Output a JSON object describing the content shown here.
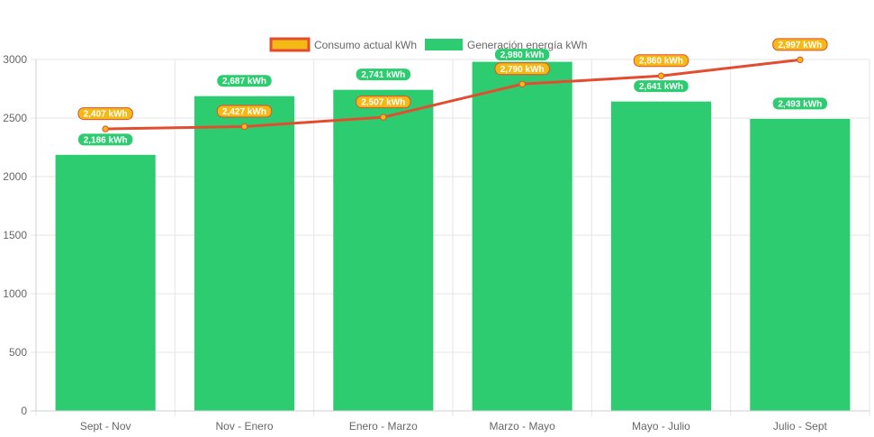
{
  "chart_data": {
    "type": "bar",
    "categories": [
      "Sept - Nov",
      "Nov - Enero",
      "Enero - Marzo",
      "Marzo - Mayo",
      "Mayo - Julio",
      "Julio - Sept"
    ],
    "series": [
      {
        "name": "Consumo actual kWh",
        "type": "line",
        "values": [
          2407,
          2427,
          2507,
          2790,
          2860,
          2997
        ],
        "labels": [
          "2,407 kWh",
          "2,427 kWh",
          "2,507 kWh",
          "2,790 kWh",
          "2,860 kWh",
          "2,997 kWh"
        ],
        "line_color": "#e34d2f",
        "fill_color": "#f5b915"
      },
      {
        "name": "Generación energía kWh",
        "type": "bar",
        "values": [
          2186,
          2687,
          2741,
          2980,
          2641,
          2493
        ],
        "labels": [
          "2,186 kWh",
          "2,687 kWh",
          "2,741 kWh",
          "2,980 kWh",
          "2,641 kWh",
          "2,493 kWh"
        ],
        "color": "#2ecc71"
      }
    ],
    "title": "",
    "xlabel": "",
    "ylabel": "",
    "ylim": [
      0,
      3000
    ],
    "yticks": [
      "0",
      "500",
      "1000",
      "1500",
      "2000",
      "2500",
      "3000"
    ],
    "ytick_values": [
      0,
      500,
      1000,
      1500,
      2000,
      2500,
      3000
    ],
    "grid": true,
    "legend_position": "top"
  }
}
